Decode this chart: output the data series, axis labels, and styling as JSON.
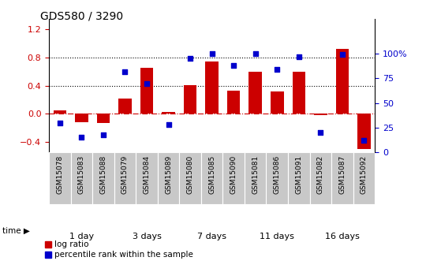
{
  "title": "GDS580 / 3290",
  "samples": [
    "GSM15078",
    "GSM15083",
    "GSM15088",
    "GSM15079",
    "GSM15084",
    "GSM15089",
    "GSM15080",
    "GSM15085",
    "GSM15090",
    "GSM15081",
    "GSM15086",
    "GSM15091",
    "GSM15082",
    "GSM15087",
    "GSM15092"
  ],
  "log_ratio": [
    0.05,
    -0.12,
    -0.13,
    0.22,
    0.65,
    0.02,
    0.41,
    0.75,
    0.33,
    0.6,
    0.32,
    0.6,
    -0.02,
    0.93,
    -0.5
  ],
  "percentile_rank": [
    30,
    15,
    18,
    82,
    70,
    28,
    95,
    100,
    88,
    100,
    84,
    97,
    20,
    99,
    12
  ],
  "groups": [
    {
      "label": "1 day",
      "start": 0,
      "end": 3,
      "color": "#d4f7d4"
    },
    {
      "label": "3 days",
      "start": 3,
      "end": 6,
      "color": "#b8f0b8"
    },
    {
      "label": "7 days",
      "start": 6,
      "end": 9,
      "color": "#90e890"
    },
    {
      "label": "11 days",
      "start": 9,
      "end": 12,
      "color": "#68de68"
    },
    {
      "label": "16 days",
      "start": 12,
      "end": 15,
      "color": "#44cc44"
    }
  ],
  "bar_color": "#cc0000",
  "dot_color": "#0000cc",
  "ylim_left": [
    -0.55,
    1.35
  ],
  "ylim_right": [
    0,
    135
  ],
  "yticks_left": [
    -0.4,
    0.0,
    0.4,
    0.8,
    1.2
  ],
  "yticks_right": [
    0,
    25,
    50,
    75,
    100
  ],
  "ytick_labels_right": [
    "0",
    "25",
    "50",
    "75",
    "100%"
  ],
  "hlines": [
    0.4,
    0.8
  ],
  "zero_line": 0.0,
  "sample_box_color": "#c8c8c8",
  "legend_entries": [
    "log ratio",
    "percentile rank within the sample"
  ]
}
